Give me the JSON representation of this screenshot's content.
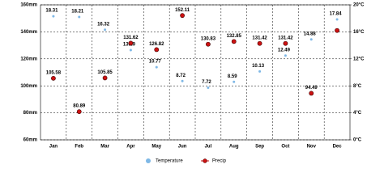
{
  "chart_data": {
    "type": "line",
    "categories": [
      "Jan",
      "Feb",
      "Mar",
      "Apr",
      "May",
      "Jun",
      "Jul",
      "Aug",
      "Sep",
      "Oct",
      "Nov",
      "Dec"
    ],
    "series": [
      {
        "name": "Temperature",
        "color": "#7fb8e6",
        "axis": "y2",
        "values": [
          18.31,
          18.21,
          16.32,
          13.29,
          10.77,
          8.72,
          7.72,
          8.59,
          10.13,
          12.49,
          14.88,
          17.84
        ]
      },
      {
        "name": "Precip",
        "color": "#cc1111",
        "axis": "y",
        "values": [
          105.58,
          80.89,
          105.85,
          131.62,
          126.82,
          152.11,
          130.83,
          132.85,
          131.42,
          131.42,
          94.49,
          141
        ]
      }
    ],
    "ylim": [
      60,
      160
    ],
    "yticks": [
      {
        "value": 60,
        "label": "60mm"
      },
      {
        "value": 80,
        "label": "80mm"
      },
      {
        "value": 100,
        "label": "100mm"
      },
      {
        "value": 120,
        "label": "120mm"
      },
      {
        "value": 140,
        "label": "140mm"
      },
      {
        "value": 160,
        "label": "160mm"
      }
    ],
    "y2lim": [
      0,
      20
    ],
    "y2ticks": [
      {
        "value": 0,
        "label": "0°C"
      },
      {
        "value": 4,
        "label": "4°C"
      },
      {
        "value": 8,
        "label": "8°C"
      },
      {
        "value": 12,
        "label": "12°C"
      },
      {
        "value": 16,
        "label": "16°C"
      },
      {
        "value": 20,
        "label": "20°C"
      }
    ],
    "grid": true
  }
}
